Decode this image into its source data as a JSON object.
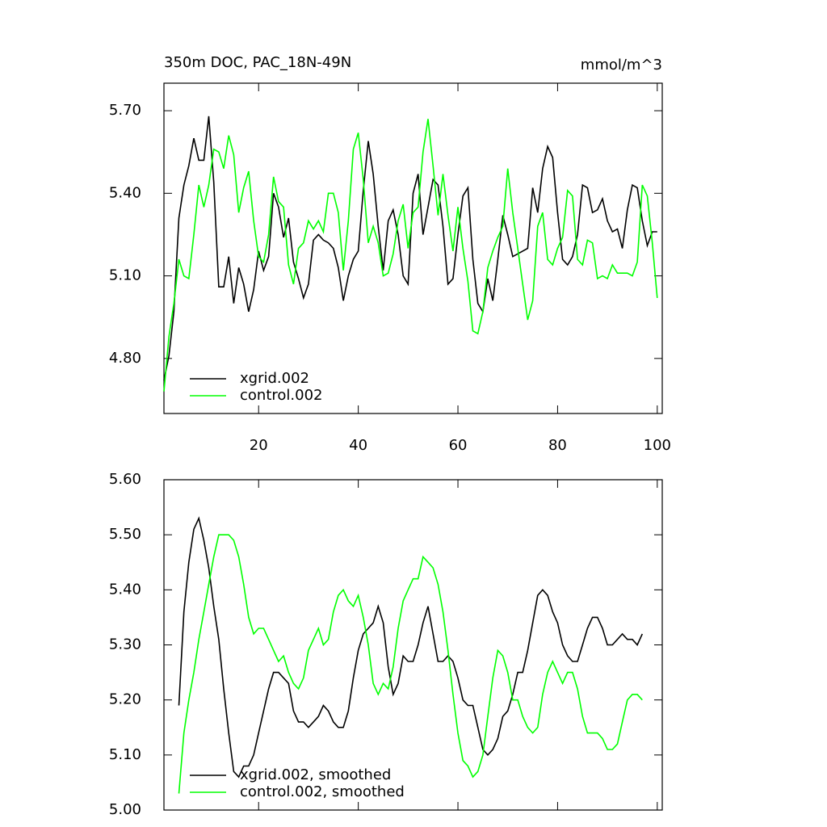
{
  "chart_data": [
    {
      "type": "line",
      "title": "350m DOC, PAC_18N-49N",
      "subtitle": "mmol/m^3",
      "x": [
        1,
        2,
        3,
        4,
        5,
        6,
        7,
        8,
        9,
        10,
        11,
        12,
        13,
        14,
        15,
        16,
        17,
        18,
        19,
        20,
        21,
        22,
        23,
        24,
        25,
        26,
        27,
        28,
        29,
        30,
        31,
        32,
        33,
        34,
        35,
        36,
        37,
        38,
        39,
        40,
        41,
        42,
        43,
        44,
        45,
        46,
        47,
        48,
        49,
        50,
        51,
        52,
        53,
        54,
        55,
        56,
        57,
        58,
        59,
        60,
        61,
        62,
        63,
        64,
        65,
        66,
        67,
        68,
        69,
        70,
        71,
        72,
        73,
        74,
        75,
        76,
        77,
        78,
        79,
        80,
        81,
        82,
        83,
        84,
        85,
        86,
        87,
        88,
        89,
        90,
        91,
        92,
        93,
        94,
        95,
        96,
        97,
        98,
        99,
        100
      ],
      "series": [
        {
          "name": "xgrid.002",
          "color": "#000000",
          "values": [
            4.72,
            4.81,
            4.97,
            5.31,
            5.43,
            5.5,
            5.6,
            5.52,
            5.52,
            5.68,
            5.44,
            5.06,
            5.06,
            5.17,
            5.0,
            5.13,
            5.07,
            4.97,
            5.05,
            5.19,
            5.12,
            5.17,
            5.4,
            5.35,
            5.24,
            5.31,
            5.15,
            5.09,
            5.02,
            5.07,
            5.23,
            5.25,
            5.23,
            5.22,
            5.2,
            5.13,
            5.01,
            5.1,
            5.16,
            5.19,
            5.41,
            5.59,
            5.47,
            5.28,
            5.12,
            5.3,
            5.34,
            5.25,
            5.1,
            5.07,
            5.4,
            5.47,
            5.25,
            5.35,
            5.45,
            5.43,
            5.28,
            5.07,
            5.09,
            5.25,
            5.39,
            5.42,
            5.16,
            5.0,
            4.97,
            5.09,
            5.01,
            5.16,
            5.32,
            5.25,
            5.17,
            5.18,
            5.19,
            5.2,
            5.42,
            5.33,
            5.49,
            5.57,
            5.53,
            5.33,
            5.16,
            5.14,
            5.17,
            5.25,
            5.43,
            5.42,
            5.33,
            5.34,
            5.38,
            5.3,
            5.26,
            5.27,
            5.2,
            5.34,
            5.43,
            5.42,
            5.3,
            5.21,
            5.26,
            5.26
          ]
        },
        {
          "name": "control.002",
          "color": "#00ff00",
          "values": [
            4.68,
            4.88,
            5.0,
            5.16,
            5.1,
            5.09,
            5.25,
            5.43,
            5.35,
            5.43,
            5.56,
            5.55,
            5.49,
            5.61,
            5.54,
            5.33,
            5.42,
            5.48,
            5.3,
            5.17,
            5.15,
            5.25,
            5.46,
            5.37,
            5.35,
            5.14,
            5.07,
            5.2,
            5.22,
            5.3,
            5.27,
            5.3,
            5.26,
            5.4,
            5.4,
            5.33,
            5.12,
            5.3,
            5.56,
            5.62,
            5.45,
            5.22,
            5.28,
            5.22,
            5.1,
            5.11,
            5.18,
            5.3,
            5.36,
            5.2,
            5.33,
            5.35,
            5.55,
            5.67,
            5.5,
            5.32,
            5.47,
            5.32,
            5.19,
            5.35,
            5.2,
            5.08,
            4.9,
            4.89,
            4.97,
            5.13,
            5.19,
            5.24,
            5.28,
            5.49,
            5.33,
            5.2,
            5.07,
            4.94,
            5.01,
            5.28,
            5.33,
            5.16,
            5.14,
            5.2,
            5.24,
            5.41,
            5.39,
            5.16,
            5.14,
            5.23,
            5.22,
            5.09,
            5.1,
            5.09,
            5.14,
            5.11,
            5.11,
            5.11,
            5.1,
            5.15,
            5.43,
            5.39,
            5.22,
            5.02
          ]
        }
      ],
      "xlim": [
        1,
        101
      ],
      "xticks": [
        20,
        40,
        60,
        80,
        100
      ],
      "show_xtick_labels": true,
      "ylim": [
        4.6,
        5.8
      ],
      "yticks": [
        {
          "value": 4.8,
          "label": "4.80"
        },
        {
          "value": 5.1,
          "label": "5.10"
        },
        {
          "value": 5.4,
          "label": "5.40"
        },
        {
          "value": 5.7,
          "label": "5.70"
        }
      ],
      "legend": "lower left"
    },
    {
      "type": "line",
      "x": [
        4,
        5,
        6,
        7,
        8,
        9,
        10,
        11,
        12,
        13,
        14,
        15,
        16,
        17,
        18,
        19,
        20,
        21,
        22,
        23,
        24,
        25,
        26,
        27,
        28,
        29,
        30,
        31,
        32,
        33,
        34,
        35,
        36,
        37,
        38,
        39,
        40,
        41,
        42,
        43,
        44,
        45,
        46,
        47,
        48,
        49,
        50,
        51,
        52,
        53,
        54,
        55,
        56,
        57,
        58,
        59,
        60,
        61,
        62,
        63,
        64,
        65,
        66,
        67,
        68,
        69,
        70,
        71,
        72,
        73,
        74,
        75,
        76,
        77,
        78,
        79,
        80,
        81,
        82,
        83,
        84,
        85,
        86,
        87,
        88,
        89,
        90,
        91,
        92,
        93,
        94,
        95,
        96,
        97
      ],
      "series": [
        {
          "name": "xgrid.002, smoothed",
          "color": "#000000",
          "values": [
            5.19,
            5.36,
            5.45,
            5.51,
            5.53,
            5.49,
            5.44,
            5.37,
            5.31,
            5.22,
            5.14,
            5.07,
            5.06,
            5.08,
            5.08,
            5.1,
            5.14,
            5.18,
            5.22,
            5.25,
            5.25,
            5.24,
            5.23,
            5.18,
            5.16,
            5.16,
            5.15,
            5.16,
            5.17,
            5.19,
            5.18,
            5.16,
            5.15,
            5.15,
            5.18,
            5.24,
            5.29,
            5.32,
            5.33,
            5.34,
            5.37,
            5.34,
            5.26,
            5.21,
            5.23,
            5.28,
            5.27,
            5.27,
            5.3,
            5.34,
            5.37,
            5.32,
            5.27,
            5.27,
            5.28,
            5.27,
            5.24,
            5.2,
            5.19,
            5.19,
            5.15,
            5.11,
            5.1,
            5.11,
            5.13,
            5.17,
            5.18,
            5.21,
            5.25,
            5.25,
            5.29,
            5.34,
            5.39,
            5.4,
            5.39,
            5.36,
            5.34,
            5.3,
            5.28,
            5.27,
            5.27,
            5.3,
            5.33,
            5.35,
            5.35,
            5.33,
            5.3,
            5.3,
            5.31,
            5.32,
            5.31,
            5.31,
            5.3,
            5.32
          ]
        },
        {
          "name": "control.002, smoothed",
          "color": "#00ff00",
          "values": [
            5.03,
            5.14,
            5.2,
            5.25,
            5.31,
            5.36,
            5.41,
            5.46,
            5.5,
            5.5,
            5.5,
            5.49,
            5.46,
            5.41,
            5.35,
            5.32,
            5.33,
            5.33,
            5.31,
            5.29,
            5.27,
            5.28,
            5.25,
            5.23,
            5.22,
            5.24,
            5.29,
            5.31,
            5.33,
            5.3,
            5.31,
            5.36,
            5.39,
            5.4,
            5.38,
            5.37,
            5.39,
            5.35,
            5.3,
            5.23,
            5.21,
            5.23,
            5.22,
            5.26,
            5.33,
            5.38,
            5.4,
            5.42,
            5.42,
            5.46,
            5.45,
            5.44,
            5.41,
            5.36,
            5.29,
            5.21,
            5.14,
            5.09,
            5.08,
            5.06,
            5.07,
            5.1,
            5.17,
            5.24,
            5.29,
            5.28,
            5.25,
            5.2,
            5.2,
            5.17,
            5.15,
            5.14,
            5.15,
            5.21,
            5.25,
            5.27,
            5.25,
            5.23,
            5.25,
            5.25,
            5.22,
            5.17,
            5.14,
            5.14,
            5.14,
            5.13,
            5.11,
            5.11,
            5.12,
            5.16,
            5.2,
            5.21,
            5.21,
            5.2
          ]
        }
      ],
      "xlim": [
        1,
        101
      ],
      "xticks": [
        20,
        40,
        60,
        80,
        100
      ],
      "show_xtick_labels": false,
      "ylim": [
        5.0,
        5.6
      ],
      "yticks": [
        {
          "value": 5.0,
          "label": "5.00"
        },
        {
          "value": 5.1,
          "label": "5.10"
        },
        {
          "value": 5.2,
          "label": "5.20"
        },
        {
          "value": 5.3,
          "label": "5.30"
        },
        {
          "value": 5.4,
          "label": "5.40"
        },
        {
          "value": 5.5,
          "label": "5.50"
        },
        {
          "value": 5.6,
          "label": "5.60"
        }
      ],
      "legend": "lower left"
    }
  ]
}
